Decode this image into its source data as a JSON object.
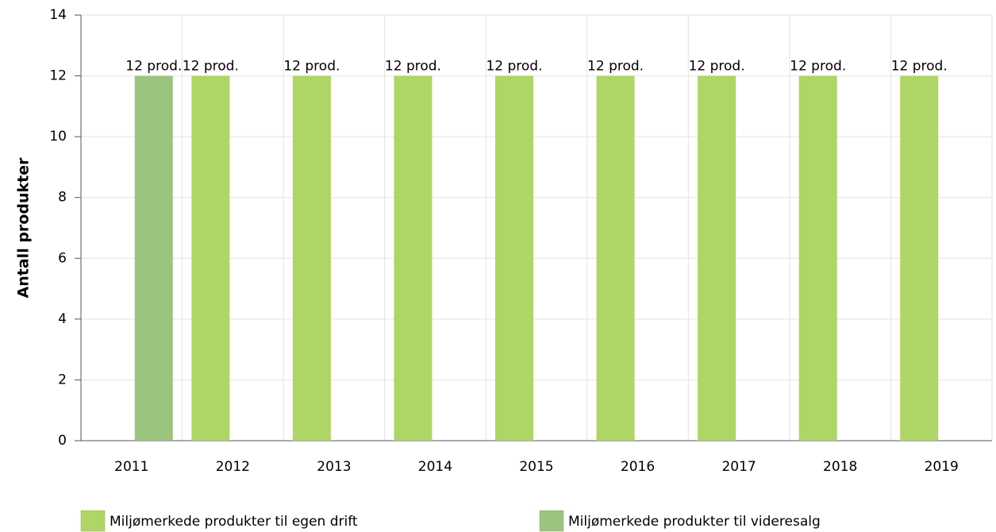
{
  "chart_data": {
    "type": "bar",
    "y_label": "Antall produkter",
    "categories": [
      "2011",
      "2012",
      "2013",
      "2014",
      "2015",
      "2016",
      "2017",
      "2018",
      "2019"
    ],
    "series": [
      {
        "name": "Miljømerkede produkter til egen drift",
        "color": "#aed566",
        "values": [
          null,
          12,
          12,
          12,
          12,
          12,
          12,
          12,
          12
        ],
        "value_labels": [
          null,
          "12 prod.",
          "12 prod.",
          "12 prod.",
          "12 prod.",
          "12 prod.",
          "12 prod.",
          "12 prod.",
          "12 prod."
        ]
      },
      {
        "name": "Miljømerkede produkter til videresalg",
        "color": "#9bc47e",
        "values": [
          12,
          null,
          null,
          null,
          null,
          null,
          null,
          null,
          null
        ],
        "value_labels": [
          "12 prod.",
          null,
          null,
          null,
          null,
          null,
          null,
          null,
          null
        ]
      }
    ],
    "ylim": [
      0,
      14
    ],
    "yticks": [
      0,
      2,
      4,
      6,
      8,
      10,
      12,
      14
    ],
    "grid": true
  }
}
